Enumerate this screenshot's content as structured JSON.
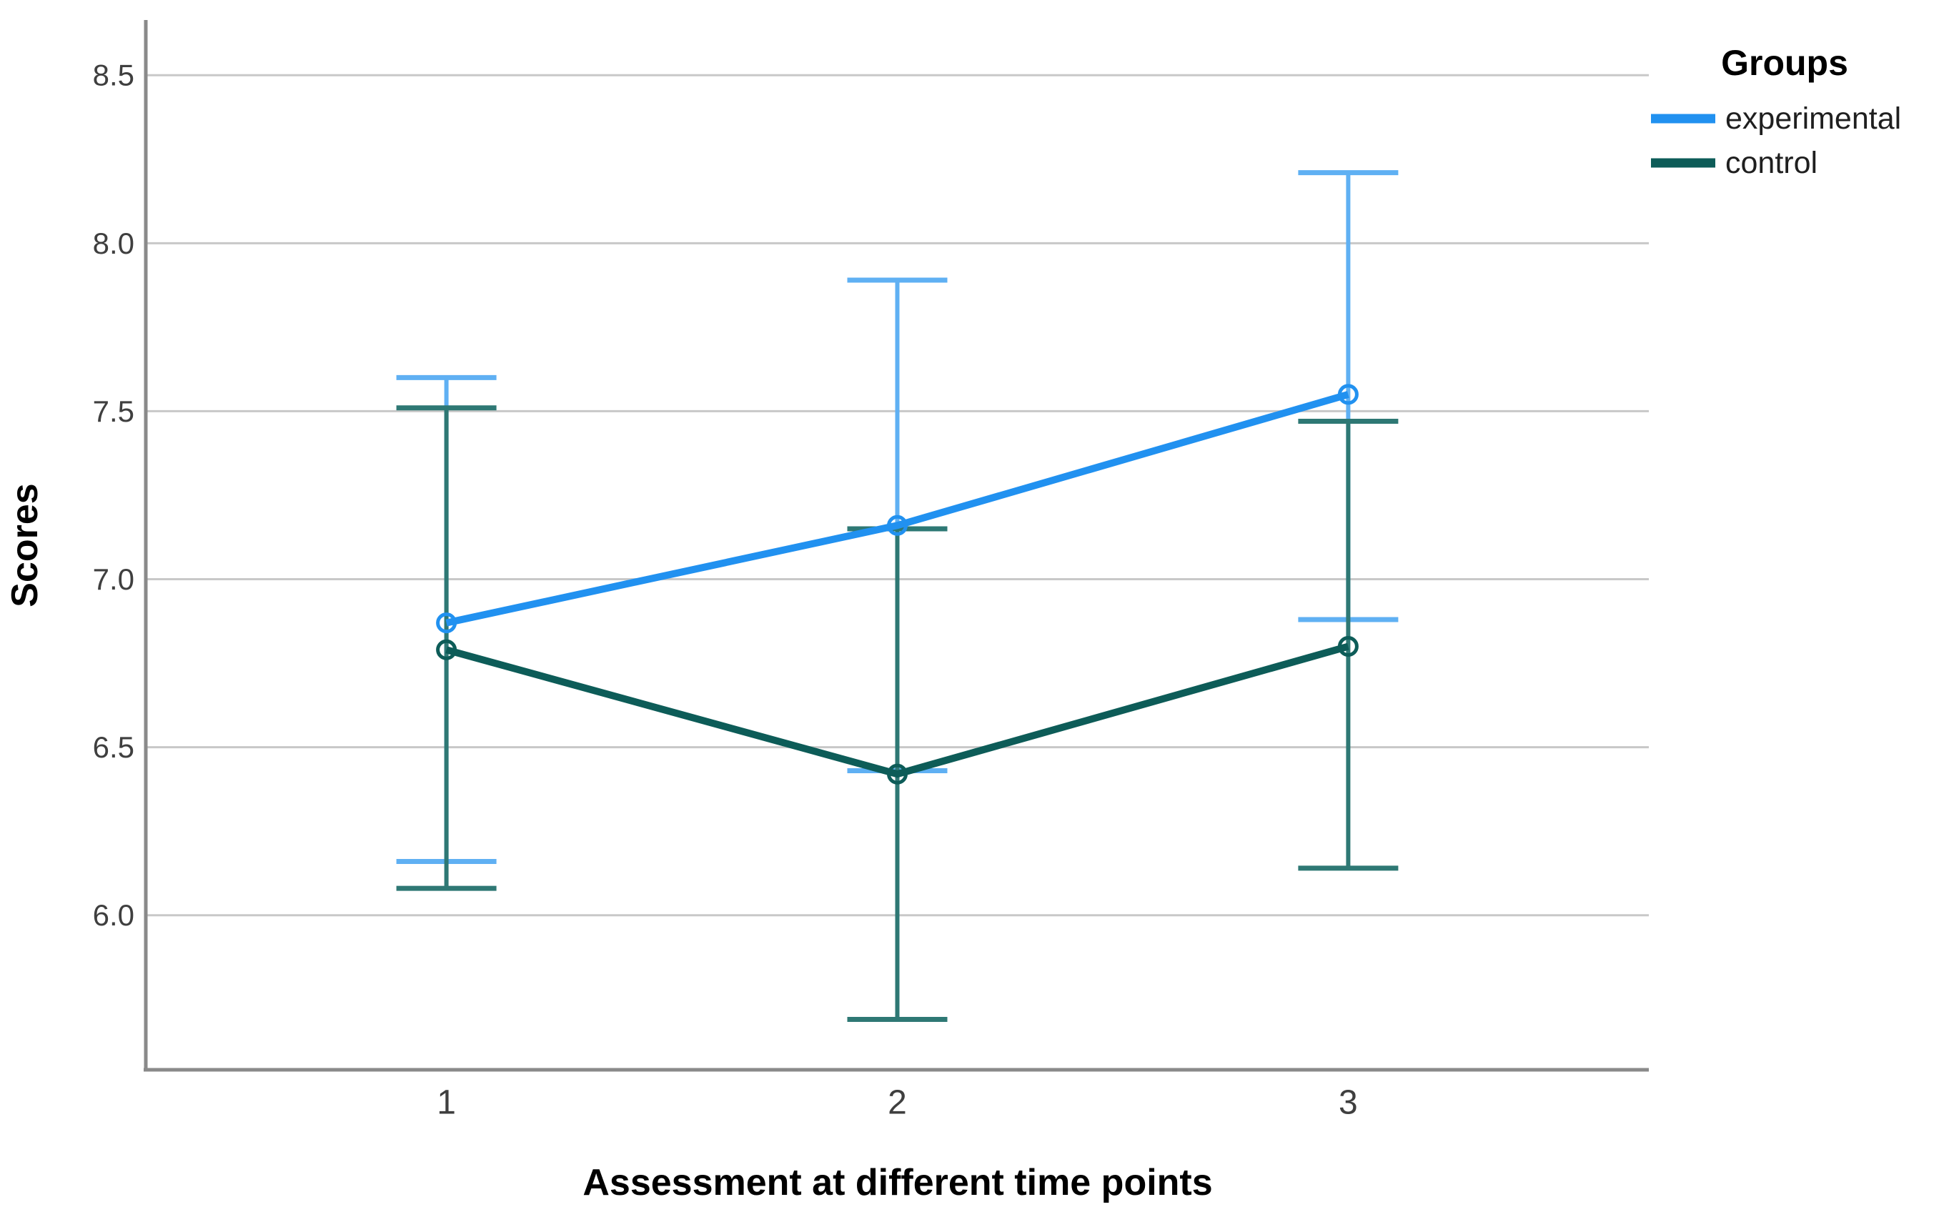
{
  "chart_data": {
    "type": "line",
    "title": "",
    "xlabel": "Assessment at different time points",
    "ylabel": "Scores",
    "categories": [
      "1",
      "2",
      "3"
    ],
    "y_ticks": [
      "8.5",
      "8.0",
      "7.5",
      "7.0",
      "6.5",
      "6.0"
    ],
    "y_tick_values": [
      8.5,
      8.0,
      7.5,
      7.0,
      6.5,
      6.0
    ],
    "ylim": [
      5.54,
      8.66
    ],
    "grid": "horizontal-only",
    "error_bars": "95% confidence interval caps",
    "legend": {
      "title": "Groups",
      "position": "top-right-outside",
      "entries": [
        "experimental",
        "control"
      ]
    },
    "series": [
      {
        "name": "experimental",
        "color": "#2191F0",
        "error_bar_color": "#5FB0F3",
        "means": [
          6.87,
          7.16,
          7.55
        ],
        "ci_lower": [
          6.16,
          6.43,
          6.88
        ],
        "ci_upper": [
          7.6,
          7.89,
          8.21
        ]
      },
      {
        "name": "control",
        "color": "#0D5C58",
        "error_bar_color": "#2E7874",
        "means": [
          6.79,
          6.42,
          6.8
        ],
        "ci_lower": [
          6.08,
          5.69,
          6.14
        ],
        "ci_upper": [
          7.51,
          7.15,
          7.47
        ]
      }
    ],
    "colors": {
      "gridline": "#C8C8C8",
      "axis": "#8A8A8A",
      "tick_label": "#3F3F3F",
      "title_text": "#000000",
      "background": "#FFFFFF"
    }
  }
}
